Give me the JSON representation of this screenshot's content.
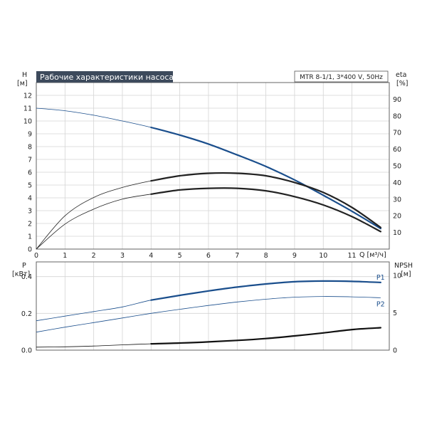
{
  "chart_data": [
    {
      "type": "line",
      "title": "Рабочие характеристики насоса",
      "model_label": "MTR 8-1/1, 3*400 V, 50Hz",
      "xlabel": "Q [м³/ч]",
      "ylabel_left": [
        "H",
        "[м]"
      ],
      "ylabel_right": [
        "eta",
        "[%]"
      ],
      "xlim": [
        0,
        12.3
      ],
      "ylim_left": [
        0,
        13
      ],
      "ylim_right": [
        0,
        100
      ],
      "x_ticks": [
        0,
        1,
        2,
        3,
        4,
        5,
        6,
        7,
        8,
        9,
        10,
        11
      ],
      "x_tick_labels": [
        "0",
        "1",
        "2",
        "3",
        "4",
        "5",
        "6",
        "7",
        "8",
        "9",
        "10",
        "11"
      ],
      "y_ticks_left": [
        0,
        1,
        2,
        3,
        4,
        5,
        6,
        7,
        8,
        9,
        10,
        11,
        12
      ],
      "y_ticks_right": [
        10,
        20,
        30,
        40,
        50,
        60,
        70,
        80,
        90
      ],
      "grid": true,
      "series": [
        {
          "role": "head",
          "color": "#1a4e8c",
          "x": [
            0,
            1,
            2,
            3,
            4,
            5,
            6,
            7,
            8,
            9,
            10,
            11,
            12
          ],
          "y": [
            11,
            10.8,
            10.45,
            10.0,
            9.5,
            8.9,
            8.2,
            7.35,
            6.45,
            5.4,
            4.2,
            2.95,
            1.6
          ],
          "highlight_from": 4
        },
        {
          "role": "efficiency",
          "color": "#222222",
          "x": [
            0,
            1,
            2,
            3,
            4,
            5,
            6,
            7,
            8,
            9,
            10,
            11,
            12
          ],
          "y": [
            0,
            20,
            31,
            37,
            41,
            44,
            45.5,
            45.5,
            44,
            40,
            34,
            25,
            13
          ],
          "highlight_from": 4
        },
        {
          "role": "efficiency-2",
          "color": "#222222",
          "x": [
            0,
            1,
            2,
            3,
            4,
            5,
            6,
            7,
            8,
            9,
            10,
            11,
            12
          ],
          "y": [
            0,
            15,
            24,
            30,
            33,
            35.5,
            36.5,
            36.5,
            35,
            31.5,
            26.5,
            19.5,
            10.5
          ],
          "highlight_from": 4
        }
      ]
    },
    {
      "type": "line",
      "xlabel": "",
      "ylabel_left": [
        "P",
        "[кВт]"
      ],
      "ylabel_right": [
        "NPSH",
        "[м]"
      ],
      "xlim": [
        0,
        12.3
      ],
      "ylim_left": [
        0,
        0.48
      ],
      "ylim_right": [
        0,
        11.8
      ],
      "y_ticks_left": [
        0.0,
        0.2,
        0.4
      ],
      "y_tick_labels_left": [
        "0.0",
        "0.2",
        "0.4"
      ],
      "y_ticks_right": [
        0,
        5,
        10
      ],
      "grid": true,
      "series": [
        {
          "name": "P1",
          "color": "#1a4e8c",
          "x": [
            0,
            1,
            2,
            3,
            4,
            5,
            6,
            7,
            8,
            9,
            10,
            11,
            12
          ],
          "y": [
            0.16,
            0.185,
            0.21,
            0.235,
            0.272,
            0.298,
            0.322,
            0.343,
            0.36,
            0.372,
            0.376,
            0.374,
            0.368
          ],
          "highlight_from": 4
        },
        {
          "name": "P2",
          "color": "#1a4e8c",
          "x": [
            0,
            1,
            2,
            3,
            4,
            5,
            6,
            7,
            8,
            9,
            10,
            11,
            12
          ],
          "y": [
            0.098,
            0.125,
            0.15,
            0.175,
            0.2,
            0.222,
            0.243,
            0.262,
            0.277,
            0.288,
            0.292,
            0.29,
            0.285
          ],
          "highlight_from": null
        },
        {
          "role": "npsh",
          "axis": "right",
          "color": "#111111",
          "x": [
            0,
            1,
            2,
            3,
            4,
            5,
            6,
            7,
            8,
            9,
            10,
            11,
            12
          ],
          "y": [
            0.4,
            0.45,
            0.55,
            0.7,
            0.85,
            0.95,
            1.1,
            1.3,
            1.55,
            1.9,
            2.3,
            2.75,
            3.0
          ],
          "highlight_from": 4
        }
      ]
    }
  ]
}
